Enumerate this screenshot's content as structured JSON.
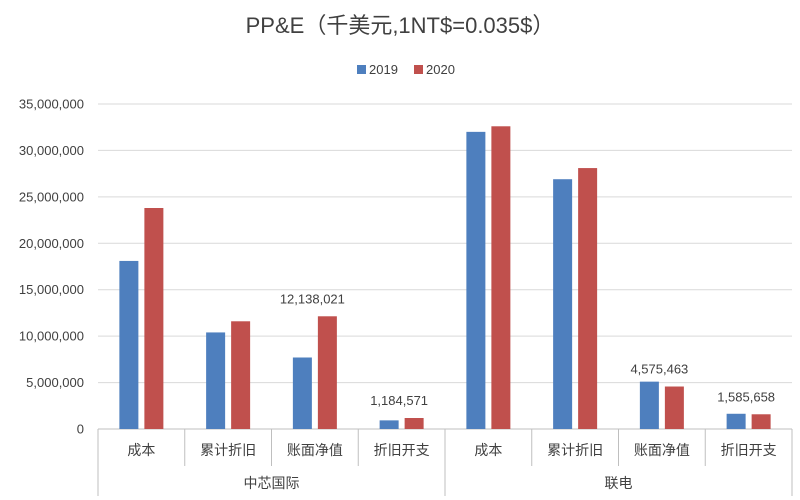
{
  "chart_data": {
    "type": "bar",
    "title": "PP&E（千美元,1NT$=0.035$）",
    "groups": [
      {
        "label": "中芯国际",
        "categories": [
          "成本",
          "累计折旧",
          "账面净值",
          "折旧开支"
        ]
      },
      {
        "label": "联电",
        "categories": [
          "成本",
          "累计折旧",
          "账面净值",
          "折旧开支"
        ]
      }
    ],
    "series": [
      {
        "name": "2019",
        "color": "#4e7fbe",
        "values": [
          18100000,
          10400000,
          7700000,
          930000,
          32000000,
          26900000,
          5100000,
          1640000
        ]
      },
      {
        "name": "2020",
        "color": "#c0504d",
        "values": [
          23800000,
          11600000,
          12138021,
          1184571,
          32600000,
          28100000,
          4575463,
          1585658
        ]
      }
    ],
    "data_labels": [
      {
        "series": 1,
        "index": 2,
        "text": "12,138,021"
      },
      {
        "series": 1,
        "index": 3,
        "text": "1,184,571"
      },
      {
        "series": 1,
        "index": 6,
        "text": "4,575,463"
      },
      {
        "series": 1,
        "index": 7,
        "text": "1,585,658"
      }
    ],
    "ylim": [
      0,
      35000000
    ],
    "yticks": [
      0,
      5000000,
      10000000,
      15000000,
      20000000,
      25000000,
      30000000,
      35000000
    ],
    "ytick_labels": [
      "0",
      "5,000,000",
      "10,000,000",
      "15,000,000",
      "20,000,000",
      "25,000,000",
      "30,000,000",
      "35,000,000"
    ],
    "grid": true,
    "legend_position": "top-center"
  },
  "colors": {
    "grid": "#d9d9d9",
    "axis": "#bfbfbf",
    "text": "#404040"
  }
}
